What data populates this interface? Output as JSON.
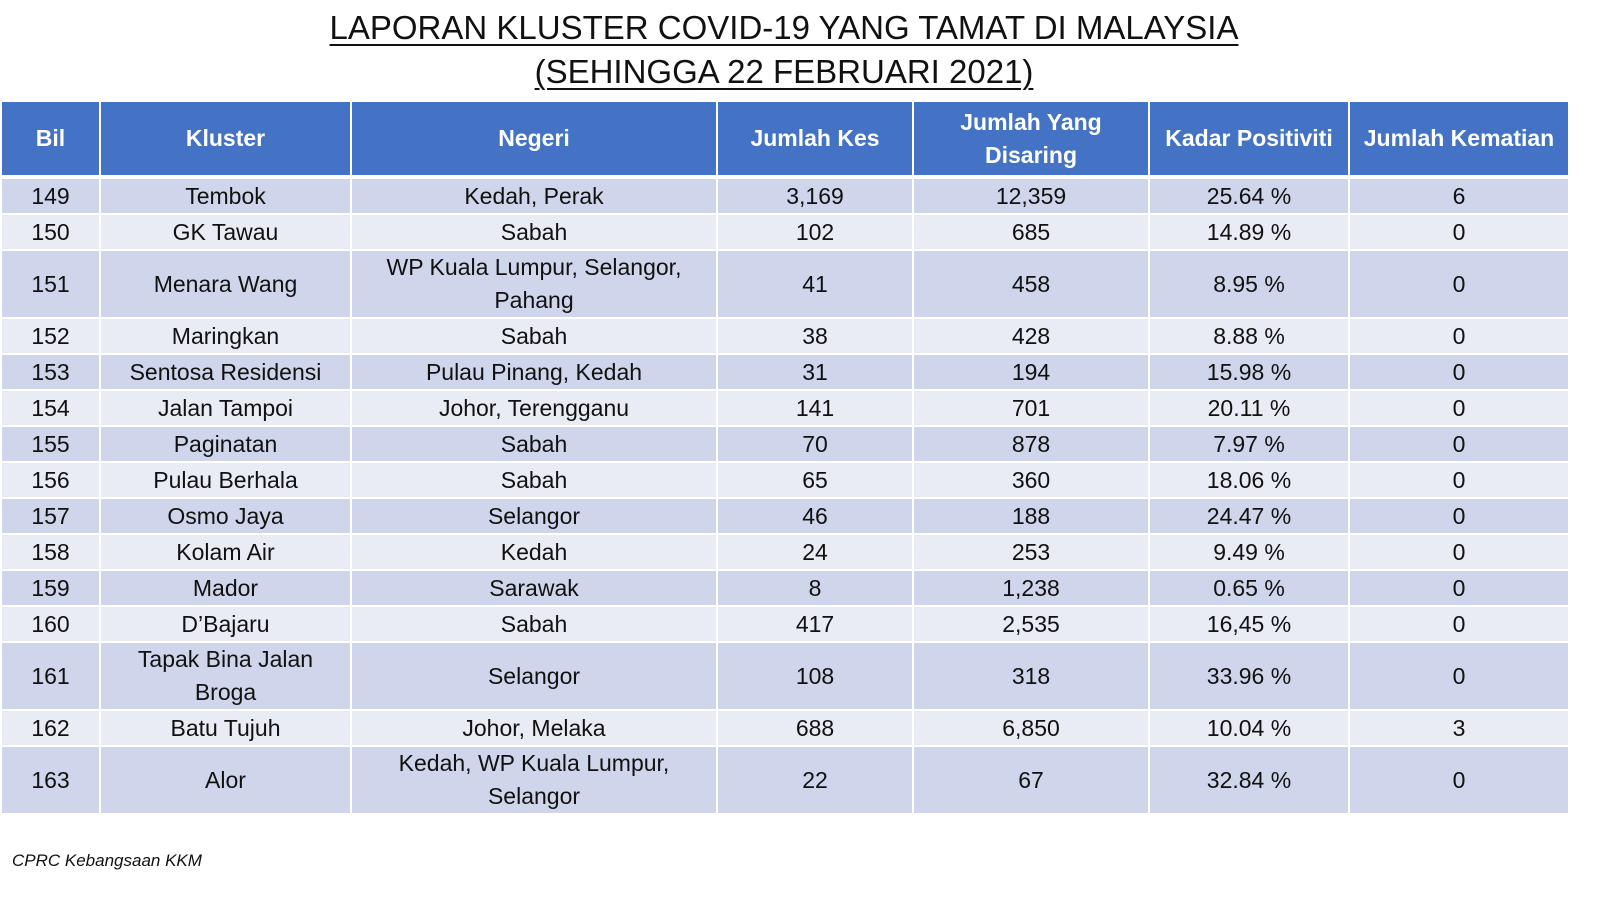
{
  "title": {
    "line1": "LAPORAN KLUSTER COVID-19 YANG TAMAT DI MALAYSIA",
    "line2": "(SEHINGGA  22 FEBRUARI 2021)"
  },
  "table": {
    "headers": [
      "Bil",
      "Kluster",
      "Negeri",
      "Jumlah Kes",
      "Jumlah Yang Disaring",
      "Kadar Positiviti",
      "Jumlah Kematian"
    ],
    "rows": [
      [
        "149",
        "Tembok",
        "Kedah, Perak",
        "3,169",
        "12,359",
        "25.64 %",
        "6"
      ],
      [
        "150",
        "GK Tawau",
        "Sabah",
        "102",
        "685",
        "14.89 %",
        "0"
      ],
      [
        "151",
        "Menara Wang",
        "WP Kuala Lumpur, Selangor, Pahang",
        "41",
        "458",
        "8.95 %",
        "0"
      ],
      [
        "152",
        "Maringkan",
        "Sabah",
        "38",
        "428",
        "8.88 %",
        "0"
      ],
      [
        "153",
        "Sentosa Residensi",
        "Pulau Pinang, Kedah",
        "31",
        "194",
        "15.98 %",
        "0"
      ],
      [
        "154",
        "Jalan Tampoi",
        "Johor, Terengganu",
        "141",
        "701",
        "20.11 %",
        "0"
      ],
      [
        "155",
        "Paginatan",
        "Sabah",
        "70",
        "878",
        "7.97 %",
        "0"
      ],
      [
        "156",
        "Pulau Berhala",
        "Sabah",
        "65",
        "360",
        "18.06 %",
        "0"
      ],
      [
        "157",
        "Osmo Jaya",
        "Selangor",
        "46",
        "188",
        "24.47 %",
        "0"
      ],
      [
        "158",
        "Kolam Air",
        "Kedah",
        "24",
        "253",
        "9.49 %",
        "0"
      ],
      [
        "159",
        "Mador",
        "Sarawak",
        "8",
        "1,238",
        "0.65 %",
        "0"
      ],
      [
        "160",
        "D’Bajaru",
        "Sabah",
        "417",
        "2,535",
        "16,45 %",
        "0"
      ],
      [
        "161",
        "Tapak Bina Jalan Broga",
        "Selangor",
        "108",
        "318",
        "33.96 %",
        "0"
      ],
      [
        "162",
        "Batu Tujuh",
        "Johor, Melaka",
        "688",
        "6,850",
        "10.04 %",
        "3"
      ],
      [
        "163",
        "Alor",
        "Kedah, WP Kuala Lumpur, Selangor",
        "22",
        "67",
        "32.84 %",
        "0"
      ]
    ]
  },
  "footer": {
    "source": "CPRC Kebangsaan KKM"
  },
  "colors": {
    "header_bg": "#4472c4",
    "row_odd_bg": "#cfd5ea",
    "row_even_bg": "#e9ebf5"
  }
}
